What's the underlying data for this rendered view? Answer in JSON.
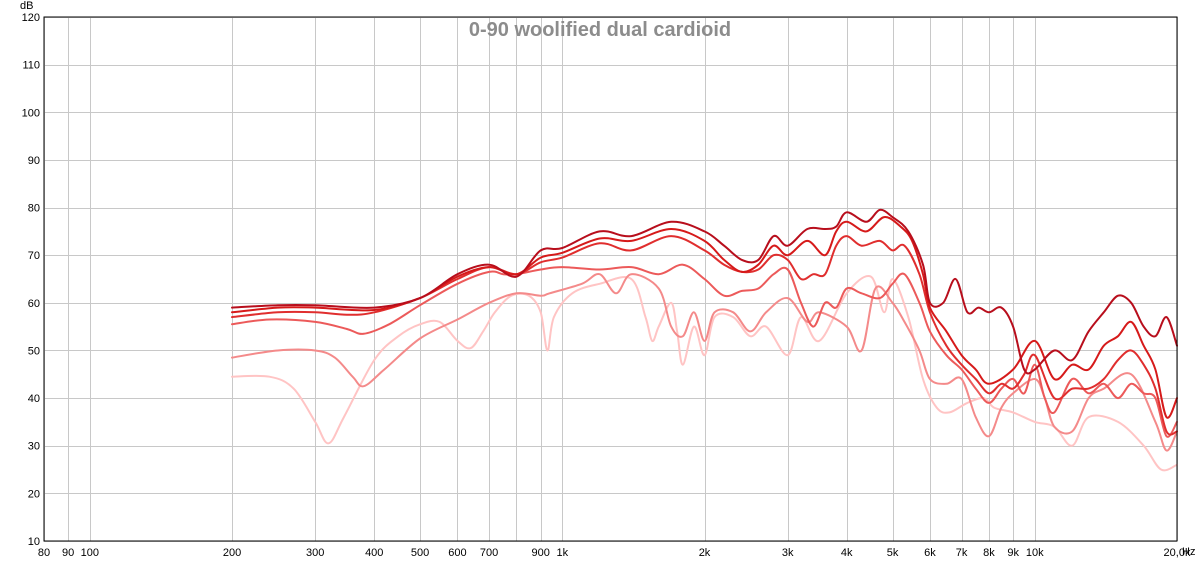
{
  "chart_data": {
    "type": "line",
    "title": "0-90 woolified dual cardioid",
    "ylabel": "dB",
    "xlabel": "Hz",
    "x_scale": "log",
    "xlim": [
      80,
      20000
    ],
    "ylim": [
      10,
      120
    ],
    "grid": true,
    "x_ticks": [
      {
        "value": 80,
        "label": "80"
      },
      {
        "value": 90,
        "label": "90"
      },
      {
        "value": 100,
        "label": "100"
      },
      {
        "value": 200,
        "label": "200"
      },
      {
        "value": 300,
        "label": "300"
      },
      {
        "value": 400,
        "label": "400"
      },
      {
        "value": 500,
        "label": "500"
      },
      {
        "value": 600,
        "label": "600"
      },
      {
        "value": 700,
        "label": "700"
      },
      {
        "value": 900,
        "label": "900"
      },
      {
        "value": 1000,
        "label": "1k"
      },
      {
        "value": 2000,
        "label": "2k"
      },
      {
        "value": 3000,
        "label": "3k"
      },
      {
        "value": 4000,
        "label": "4k"
      },
      {
        "value": 5000,
        "label": "5k"
      },
      {
        "value": 6000,
        "label": "6k"
      },
      {
        "value": 7000,
        "label": "7k"
      },
      {
        "value": 8000,
        "label": "8k"
      },
      {
        "value": 9000,
        "label": "9k"
      },
      {
        "value": 10000,
        "label": "10k"
      },
      {
        "value": 20000,
        "label": "20,0k"
      }
    ],
    "y_ticks": [
      10,
      20,
      30,
      40,
      50,
      60,
      70,
      80,
      90,
      100,
      110,
      120
    ],
    "series": [
      {
        "color": "#ffc4c4",
        "points": [
          [
            200,
            44.5
          ],
          [
            240,
            44.5
          ],
          [
            270,
            42
          ],
          [
            300,
            35
          ],
          [
            320,
            30.5
          ],
          [
            345,
            36
          ],
          [
            400,
            48
          ],
          [
            450,
            53
          ],
          [
            500,
            55.5
          ],
          [
            550,
            56
          ],
          [
            600,
            52
          ],
          [
            640,
            50.5
          ],
          [
            680,
            54
          ],
          [
            720,
            58
          ],
          [
            780,
            61.5
          ],
          [
            850,
            61.5
          ],
          [
            900,
            58
          ],
          [
            930,
            50
          ],
          [
            960,
            57
          ],
          [
            1050,
            62
          ],
          [
            1200,
            64
          ],
          [
            1400,
            65
          ],
          [
            1500,
            57
          ],
          [
            1550,
            52
          ],
          [
            1600,
            55
          ],
          [
            1700,
            60
          ],
          [
            1750,
            54
          ],
          [
            1800,
            47
          ],
          [
            1900,
            55
          ],
          [
            2000,
            49
          ],
          [
            2100,
            57
          ],
          [
            2300,
            57
          ],
          [
            2500,
            53
          ],
          [
            2700,
            55
          ],
          [
            3000,
            49
          ],
          [
            3200,
            57
          ],
          [
            3500,
            52
          ],
          [
            4000,
            62
          ],
          [
            4500,
            65.5
          ],
          [
            4800,
            58
          ],
          [
            5000,
            65
          ],
          [
            5400,
            57
          ],
          [
            5800,
            44
          ],
          [
            6200,
            38
          ],
          [
            6600,
            37
          ],
          [
            7200,
            39
          ],
          [
            7800,
            40
          ],
          [
            8200,
            38
          ],
          [
            9000,
            37
          ],
          [
            10000,
            35
          ],
          [
            11000,
            34
          ],
          [
            12000,
            30
          ],
          [
            13000,
            36
          ],
          [
            15000,
            35
          ],
          [
            17000,
            30
          ],
          [
            18500,
            25
          ],
          [
            20000,
            26
          ]
        ]
      },
      {
        "color": "#f48a8a",
        "points": [
          [
            200,
            48.5
          ],
          [
            250,
            50
          ],
          [
            300,
            50
          ],
          [
            330,
            48.5
          ],
          [
            360,
            44.5
          ],
          [
            380,
            42.5
          ],
          [
            420,
            46
          ],
          [
            500,
            52.5
          ],
          [
            600,
            56.5
          ],
          [
            700,
            60
          ],
          [
            800,
            62
          ],
          [
            900,
            61.5
          ],
          [
            940,
            62
          ],
          [
            1100,
            64
          ],
          [
            1200,
            66
          ],
          [
            1300,
            62
          ],
          [
            1400,
            66
          ],
          [
            1600,
            63
          ],
          [
            1700,
            55
          ],
          [
            1800,
            53
          ],
          [
            1900,
            58
          ],
          [
            2000,
            52
          ],
          [
            2100,
            58
          ],
          [
            2300,
            58
          ],
          [
            2500,
            54
          ],
          [
            2700,
            58
          ],
          [
            3000,
            61
          ],
          [
            3300,
            56
          ],
          [
            3500,
            58
          ],
          [
            4000,
            55
          ],
          [
            4300,
            50
          ],
          [
            4600,
            63
          ],
          [
            5000,
            60
          ],
          [
            5300,
            56
          ],
          [
            5700,
            50
          ],
          [
            6000,
            44
          ],
          [
            6500,
            43
          ],
          [
            7000,
            44
          ],
          [
            7500,
            36
          ],
          [
            8000,
            32
          ],
          [
            8500,
            38
          ],
          [
            9000,
            41
          ],
          [
            10000,
            44
          ],
          [
            10500,
            40
          ],
          [
            11000,
            34
          ],
          [
            12000,
            33
          ],
          [
            13000,
            40
          ],
          [
            14000,
            42
          ],
          [
            16000,
            45
          ],
          [
            18000,
            35
          ],
          [
            19000,
            29
          ],
          [
            20000,
            33
          ]
        ]
      },
      {
        "color": "#ec5a5a",
        "points": [
          [
            200,
            55.5
          ],
          [
            240,
            56.5
          ],
          [
            300,
            56
          ],
          [
            350,
            54.5
          ],
          [
            380,
            53.5
          ],
          [
            430,
            55.5
          ],
          [
            500,
            59.5
          ],
          [
            600,
            64
          ],
          [
            700,
            66.5
          ],
          [
            750,
            66
          ],
          [
            800,
            66
          ],
          [
            900,
            67
          ],
          [
            1000,
            67.5
          ],
          [
            1200,
            67
          ],
          [
            1400,
            67.5
          ],
          [
            1600,
            66
          ],
          [
            1800,
            68
          ],
          [
            2000,
            65
          ],
          [
            2200,
            61.5
          ],
          [
            2400,
            62.5
          ],
          [
            2600,
            63
          ],
          [
            2800,
            66
          ],
          [
            3000,
            67
          ],
          [
            3200,
            60
          ],
          [
            3400,
            55
          ],
          [
            3600,
            60
          ],
          [
            3800,
            59
          ],
          [
            4000,
            63
          ],
          [
            4300,
            62
          ],
          [
            4700,
            61
          ],
          [
            5000,
            64
          ],
          [
            5300,
            66
          ],
          [
            5700,
            60
          ],
          [
            6000,
            54
          ],
          [
            6500,
            49
          ],
          [
            7000,
            46
          ],
          [
            7500,
            42
          ],
          [
            8000,
            39
          ],
          [
            8500,
            42
          ],
          [
            9000,
            44
          ],
          [
            9500,
            41
          ],
          [
            10000,
            47
          ],
          [
            10500,
            40
          ],
          [
            11000,
            37
          ],
          [
            12000,
            44
          ],
          [
            13000,
            41
          ],
          [
            14000,
            43
          ],
          [
            15000,
            40
          ],
          [
            16000,
            43
          ],
          [
            17000,
            41
          ],
          [
            18000,
            40
          ],
          [
            19000,
            32
          ],
          [
            20000,
            35
          ]
        ]
      },
      {
        "color": "#e02e2e",
        "points": [
          [
            200,
            57
          ],
          [
            250,
            58
          ],
          [
            300,
            58
          ],
          [
            350,
            57.5
          ],
          [
            400,
            58
          ],
          [
            500,
            61
          ],
          [
            600,
            65
          ],
          [
            700,
            67.5
          ],
          [
            800,
            66
          ],
          [
            900,
            68.5
          ],
          [
            1000,
            69.5
          ],
          [
            1200,
            72.5
          ],
          [
            1400,
            71
          ],
          [
            1700,
            74
          ],
          [
            2000,
            71
          ],
          [
            2200,
            68
          ],
          [
            2400,
            66.5
          ],
          [
            2600,
            67
          ],
          [
            2800,
            70
          ],
          [
            3000,
            69
          ],
          [
            3200,
            65
          ],
          [
            3400,
            66
          ],
          [
            3600,
            66
          ],
          [
            3800,
            72
          ],
          [
            4000,
            74
          ],
          [
            4300,
            72
          ],
          [
            4700,
            73
          ],
          [
            5000,
            71
          ],
          [
            5300,
            72
          ],
          [
            5700,
            66
          ],
          [
            6000,
            58
          ],
          [
            6500,
            51
          ],
          [
            7000,
            47
          ],
          [
            7500,
            44
          ],
          [
            8000,
            41
          ],
          [
            8500,
            43
          ],
          [
            9000,
            42
          ],
          [
            9500,
            45
          ],
          [
            10000,
            49
          ],
          [
            11000,
            40
          ],
          [
            12000,
            42
          ],
          [
            13000,
            42
          ],
          [
            14000,
            44
          ],
          [
            15000,
            48
          ],
          [
            16000,
            50
          ],
          [
            17000,
            47
          ],
          [
            18000,
            42
          ],
          [
            19000,
            33
          ],
          [
            20000,
            33
          ]
        ]
      },
      {
        "color": "#d61a1a",
        "points": [
          [
            200,
            58
          ],
          [
            250,
            59
          ],
          [
            300,
            59
          ],
          [
            400,
            58.5
          ],
          [
            500,
            61
          ],
          [
            600,
            65.5
          ],
          [
            700,
            67.5
          ],
          [
            800,
            66
          ],
          [
            900,
            69.5
          ],
          [
            1000,
            70.5
          ],
          [
            1200,
            73.5
          ],
          [
            1400,
            73
          ],
          [
            1700,
            75.5
          ],
          [
            2000,
            73
          ],
          [
            2200,
            69
          ],
          [
            2400,
            66.5
          ],
          [
            2600,
            68
          ],
          [
            2800,
            72
          ],
          [
            3000,
            70
          ],
          [
            3300,
            73
          ],
          [
            3600,
            70
          ],
          [
            3800,
            75
          ],
          [
            4000,
            77
          ],
          [
            4400,
            75
          ],
          [
            4800,
            78
          ],
          [
            5200,
            76
          ],
          [
            5500,
            73
          ],
          [
            5800,
            66
          ],
          [
            6000,
            59
          ],
          [
            6500,
            54
          ],
          [
            7000,
            49
          ],
          [
            7500,
            46
          ],
          [
            8000,
            43
          ],
          [
            9000,
            46
          ],
          [
            10000,
            52
          ],
          [
            11000,
            44
          ],
          [
            12000,
            47
          ],
          [
            13000,
            46
          ],
          [
            14000,
            51
          ],
          [
            15000,
            53
          ],
          [
            16000,
            56
          ],
          [
            17000,
            51
          ],
          [
            18000,
            46
          ],
          [
            19000,
            36
          ],
          [
            20000,
            40
          ]
        ]
      },
      {
        "color": "#b80e1c",
        "points": [
          [
            200,
            59
          ],
          [
            250,
            59.5
          ],
          [
            300,
            59.5
          ],
          [
            400,
            59
          ],
          [
            500,
            61
          ],
          [
            600,
            66
          ],
          [
            700,
            68
          ],
          [
            800,
            65.5
          ],
          [
            900,
            71
          ],
          [
            1000,
            71.5
          ],
          [
            1200,
            75
          ],
          [
            1400,
            74
          ],
          [
            1700,
            77
          ],
          [
            2000,
            75
          ],
          [
            2200,
            72
          ],
          [
            2400,
            69
          ],
          [
            2600,
            69
          ],
          [
            2800,
            74
          ],
          [
            3000,
            72
          ],
          [
            3300,
            75.5
          ],
          [
            3600,
            75.5
          ],
          [
            3800,
            76
          ],
          [
            4000,
            79
          ],
          [
            4400,
            77
          ],
          [
            4700,
            79.5
          ],
          [
            5000,
            78
          ],
          [
            5400,
            75
          ],
          [
            5800,
            68
          ],
          [
            6000,
            60
          ],
          [
            6400,
            60
          ],
          [
            6800,
            65
          ],
          [
            7200,
            58
          ],
          [
            7600,
            59
          ],
          [
            8000,
            58
          ],
          [
            8500,
            59
          ],
          [
            9000,
            55
          ],
          [
            9500,
            46
          ],
          [
            10000,
            46
          ],
          [
            11000,
            50
          ],
          [
            12000,
            48
          ],
          [
            13000,
            54
          ],
          [
            14000,
            58
          ],
          [
            15000,
            61.5
          ],
          [
            16000,
            60
          ],
          [
            17000,
            55
          ],
          [
            18000,
            53
          ],
          [
            19000,
            57
          ],
          [
            20000,
            51
          ]
        ]
      }
    ]
  }
}
